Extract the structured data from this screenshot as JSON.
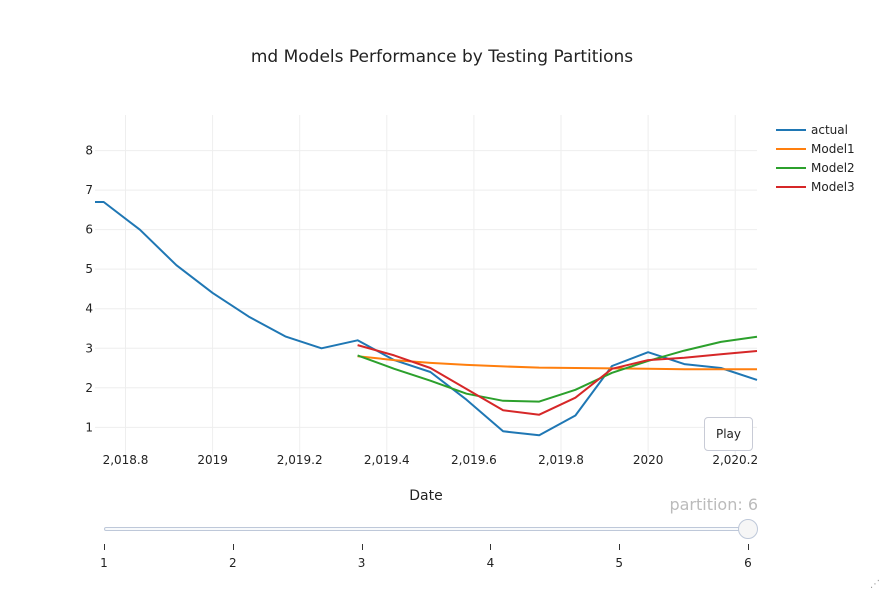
{
  "chart_data": {
    "type": "line",
    "title": "md Models Performance by Testing Partitions",
    "xlabel": "Date",
    "ylabel": "",
    "xlim": [
      2018.73,
      2020.25
    ],
    "ylim": [
      0.3,
      8.9
    ],
    "x_ticks": [
      2018.8,
      2019,
      2019.2,
      2019.4,
      2019.6,
      2019.8,
      2020,
      2020.2
    ],
    "x_tick_labels": [
      "2,018.8",
      "2019",
      "2,019.2",
      "2,019.4",
      "2,019.6",
      "2,019.8",
      "2020",
      "2,020.2"
    ],
    "y_ticks": [
      1,
      2,
      3,
      4,
      5,
      6,
      7,
      8
    ],
    "y_tick_labels": [
      "1",
      "2",
      "3",
      "4",
      "5",
      "6",
      "7",
      "8"
    ],
    "grid": true,
    "legend_position": "top-right",
    "series": [
      {
        "name": "actual",
        "color": "#1f77b4",
        "x": [
          2018.73,
          2018.75,
          2018.833,
          2018.917,
          2019.0,
          2019.083,
          2019.167,
          2019.25,
          2019.333,
          2019.417,
          2019.5,
          2019.583,
          2019.667,
          2019.75,
          2019.833,
          2019.917,
          2020.0,
          2020.083,
          2020.167,
          2020.25
        ],
        "y": [
          6.7,
          6.7,
          6.0,
          5.1,
          4.4,
          3.8,
          3.3,
          3.0,
          3.2,
          2.7,
          2.4,
          1.7,
          0.9,
          0.8,
          1.3,
          2.55,
          2.9,
          2.6,
          2.5,
          2.2
        ]
      },
      {
        "name": "Model1",
        "color": "#ff7f0e",
        "x": [
          2019.333,
          2019.417,
          2019.5,
          2019.583,
          2019.667,
          2019.75,
          2019.833,
          2019.917,
          2020.0,
          2020.083,
          2020.167,
          2020.25
        ],
        "y": [
          2.8,
          2.7,
          2.63,
          2.58,
          2.54,
          2.51,
          2.5,
          2.49,
          2.48,
          2.47,
          2.47,
          2.47
        ]
      },
      {
        "name": "Model2",
        "color": "#2ca02c",
        "x": [
          2019.333,
          2019.417,
          2019.5,
          2019.583,
          2019.667,
          2019.75,
          2019.833,
          2019.917,
          2020.0,
          2020.083,
          2020.167,
          2020.25
        ],
        "y": [
          2.82,
          2.48,
          2.18,
          1.85,
          1.67,
          1.65,
          1.95,
          2.38,
          2.68,
          2.94,
          3.16,
          3.29
        ]
      },
      {
        "name": "Model3",
        "color": "#d62728",
        "x": [
          2019.333,
          2019.417,
          2019.5,
          2019.583,
          2019.667,
          2019.75,
          2019.833,
          2019.917,
          2020.0,
          2020.083,
          2020.167,
          2020.25
        ],
        "y": [
          3.08,
          2.82,
          2.5,
          1.97,
          1.43,
          1.32,
          1.75,
          2.48,
          2.7,
          2.76,
          2.85,
          2.93
        ]
      }
    ]
  },
  "controls": {
    "play_label": "Play",
    "slider": {
      "current_label": "partition: 6",
      "ticks": [
        "1",
        "2",
        "3",
        "4",
        "5",
        "6"
      ],
      "value": 6,
      "min": 1,
      "max": 6
    }
  },
  "icons": {
    "resize": "resize-grip-icon"
  }
}
